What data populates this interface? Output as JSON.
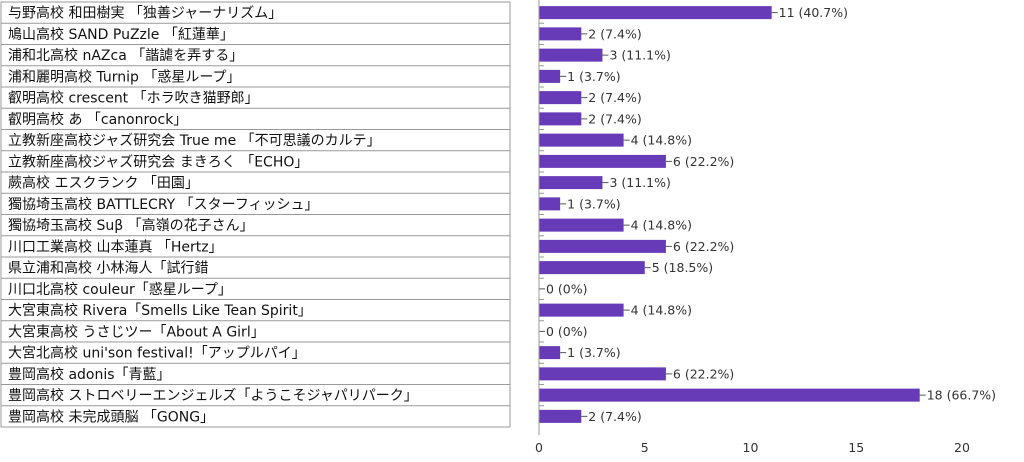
{
  "chart_data": {
    "type": "bar",
    "orientation": "horizontal",
    "categories": [
      "与野高校 和田樹実 「独善ジャーナリズム」",
      "鳩山高校 SAND PuZzle 「紅蓮華」",
      "浦和北高校 nAZca 「諧謔を弄する」",
      "浦和麗明高校 Turnip 「惑星ループ」",
      "叡明高校 crescent 「ホラ吹き猫野郎」",
      "叡明高校 あ 「canonrock」",
      "立教新座高校ジャズ研究会 True me 「不可思議のカルテ」",
      "立教新座高校ジャズ研究会 まきろく 「ECHO」",
      "蕨高校 エスクランク 「田園」",
      "獨協埼玉高校 BATTLECRY 「スターフィッシュ」",
      "獨協埼玉高校 Suβ 「高嶺の花子さん」",
      "川口工業高校 山本蓮真 「Hertz」",
      "県立浦和高校 小林海人「試行錯",
      "川口北高校 couleur「惑星ループ」",
      "大宮東高校 Rivera「Smells Like Tean Spirit」",
      "大宮東高校 うさじツー「About A Girl」",
      "大宮北高校 uni'son festival!「アップルパイ」",
      "豊岡高校 adonis「青藍」",
      "豊岡高校 ストロベリーエンジェルズ「ようこそジャパリパーク」",
      "豊岡高校 未完成頭脳 「GONG」"
    ],
    "values": [
      11,
      2,
      3,
      1,
      2,
      2,
      4,
      6,
      3,
      1,
      4,
      6,
      5,
      0,
      4,
      0,
      1,
      6,
      18,
      2
    ],
    "value_labels": [
      "11 (40.7%)",
      "2 (7.4%)",
      "3 (11.1%)",
      "1 (3.7%)",
      "2 (7.4%)",
      "2 (7.4%)",
      "4 (14.8%)",
      "6 (22.2%)",
      "3 (11.1%)",
      "1 (3.7%)",
      "4 (14.8%)",
      "6 (22.2%)",
      "5 (18.5%)",
      "0 (0%)",
      "4 (14.8%)",
      "0 (0%)",
      "1 (3.7%)",
      "6 (22.2%)",
      "18 (66.7%)",
      "2 (7.4%)"
    ],
    "x_ticks": [
      0,
      5,
      10,
      15,
      20
    ],
    "xlim": [
      0,
      22
    ],
    "grid": false,
    "colors": {
      "bar": "#673ab7",
      "grid": "#999999",
      "background": "#ffffff"
    }
  }
}
